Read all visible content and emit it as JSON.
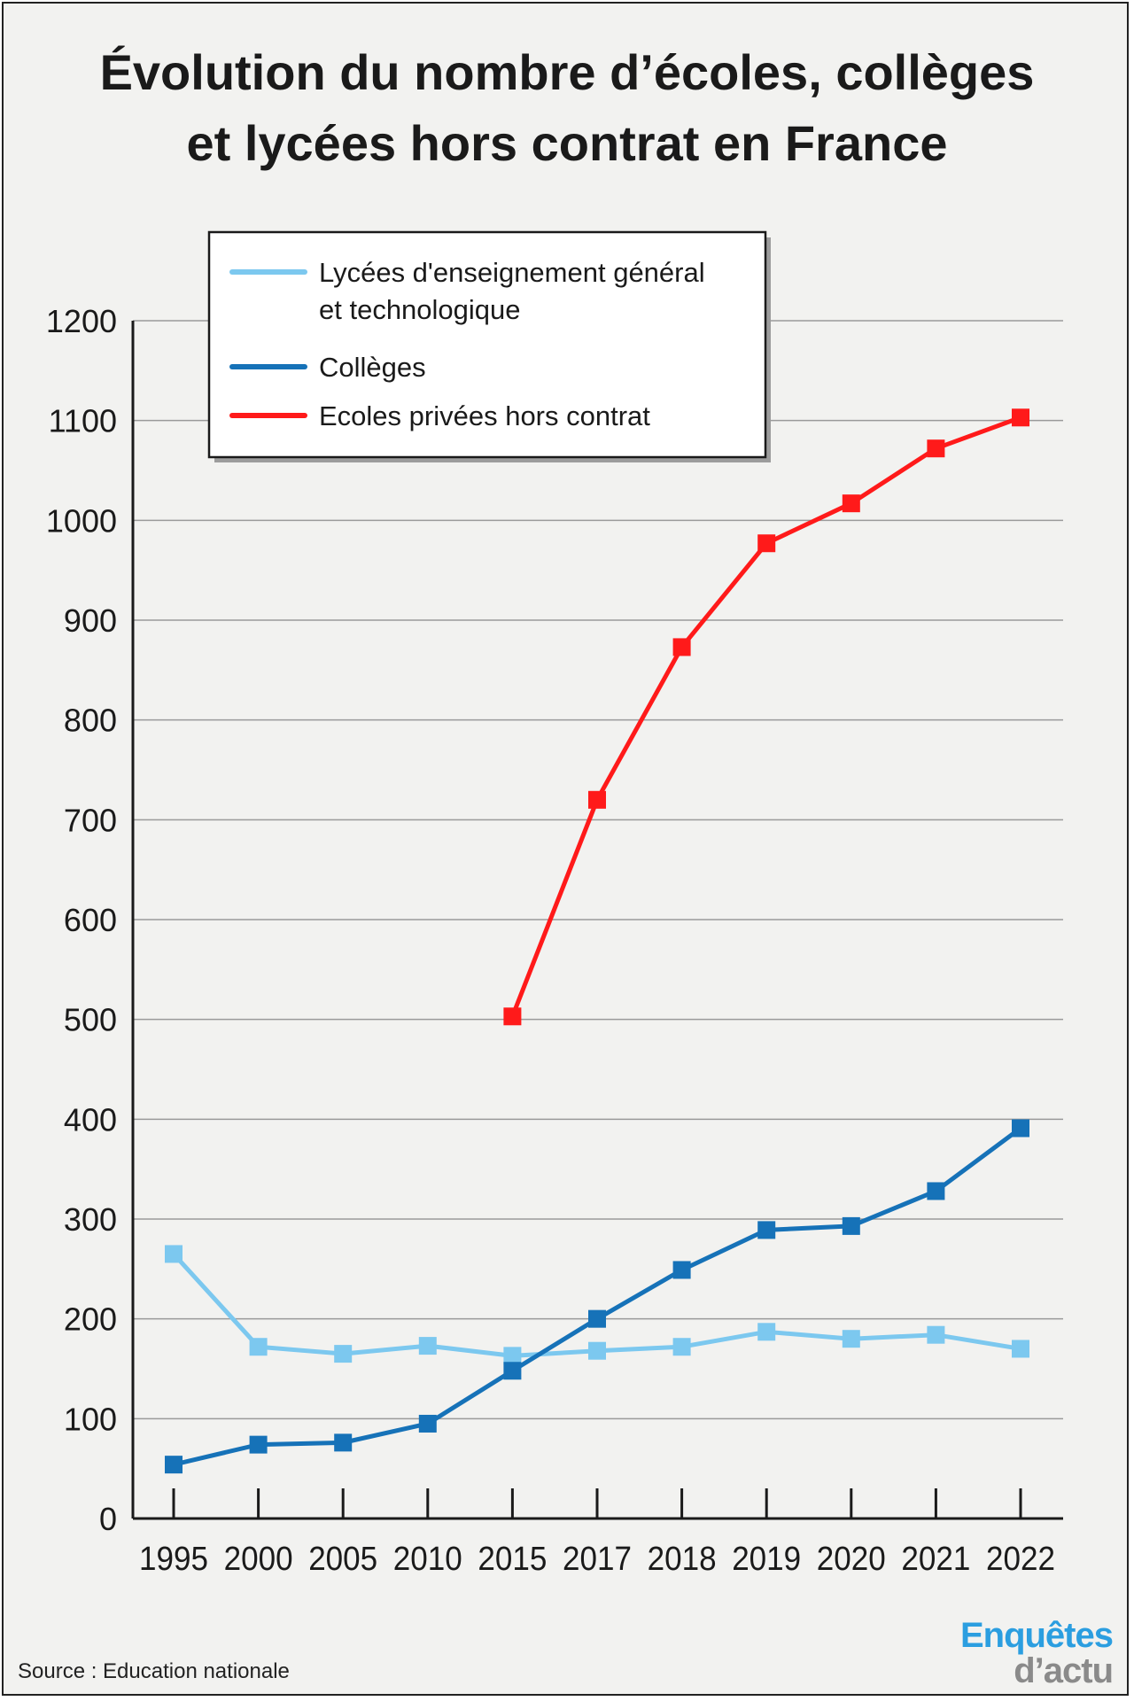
{
  "title_line1": "Évolution du nombre d’écoles, collèges",
  "title_line2": "et lycées hors contrat en France",
  "source": "Source : Education nationale",
  "brand": {
    "line1": "Enquêtes",
    "line2": "d’actu"
  },
  "chart_data": {
    "type": "line",
    "categories": [
      "1995",
      "2000",
      "2005",
      "2010",
      "2015",
      "2017",
      "2018",
      "2019",
      "2020",
      "2021",
      "2022"
    ],
    "ylim": [
      0,
      1200
    ],
    "yticks": [
      "0",
      "100",
      "200",
      "300",
      "400",
      "500",
      "600",
      "700",
      "800",
      "900",
      "1000",
      "1100",
      "1200"
    ],
    "grid": true,
    "legend_position": "top-left",
    "series": [
      {
        "name": "Lycées d'enseignement général et technologique",
        "legend_lines": [
          "Lycées d'enseignement général",
          "et technologique"
        ],
        "color": "#7cc8ef",
        "values": [
          265,
          172,
          165,
          173,
          163,
          168,
          172,
          187,
          180,
          184,
          170
        ]
      },
      {
        "name": "Collèges",
        "legend_lines": [
          "Collèges"
        ],
        "color": "#1672b8",
        "values": [
          54,
          74,
          76,
          95,
          148,
          200,
          249,
          289,
          293,
          328,
          391
        ]
      },
      {
        "name": "Ecoles privées hors contrat",
        "legend_lines": [
          "Ecoles privées hors contrat"
        ],
        "color": "#ff1a1a",
        "values": [
          null,
          null,
          null,
          null,
          503,
          720,
          873,
          977,
          1017,
          1072,
          1103
        ]
      }
    ]
  }
}
